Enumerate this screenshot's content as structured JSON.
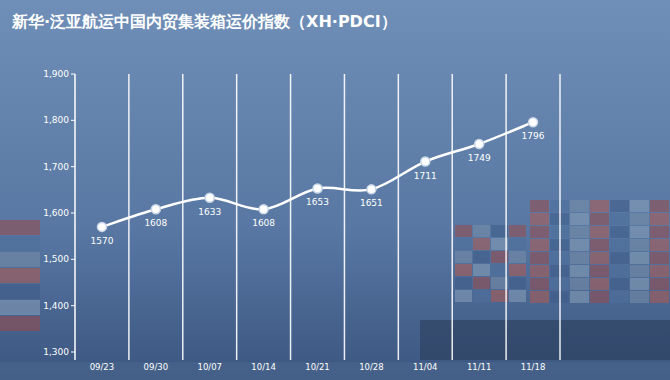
{
  "chart_data": {
    "type": "line",
    "title": "新华·泛亚航运中国内贸集装箱运价指数（XH·PDCI）",
    "categories": [
      "09/23",
      "09/30",
      "10/07",
      "10/14",
      "10/21",
      "10/28",
      "11/04",
      "11/11",
      "11/18"
    ],
    "values": [
      1570,
      1608,
      1633,
      1608,
      1653,
      1651,
      1711,
      1749,
      1796
    ],
    "color": "#ffffff",
    "ylim": [
      1300,
      1900
    ],
    "yticks": [
      {
        "value": 1300,
        "label": "1,300"
      },
      {
        "value": 1400,
        "label": "1,400"
      },
      {
        "value": 1500,
        "label": "1,500"
      },
      {
        "value": 1600,
        "label": "1,600"
      },
      {
        "value": 1700,
        "label": "1,700"
      },
      {
        "value": 1800,
        "label": "1,800"
      },
      {
        "value": 1900,
        "label": "1,900"
      }
    ],
    "grid": true,
    "data_labels": true,
    "marker": "circle",
    "line_style": "solid"
  }
}
